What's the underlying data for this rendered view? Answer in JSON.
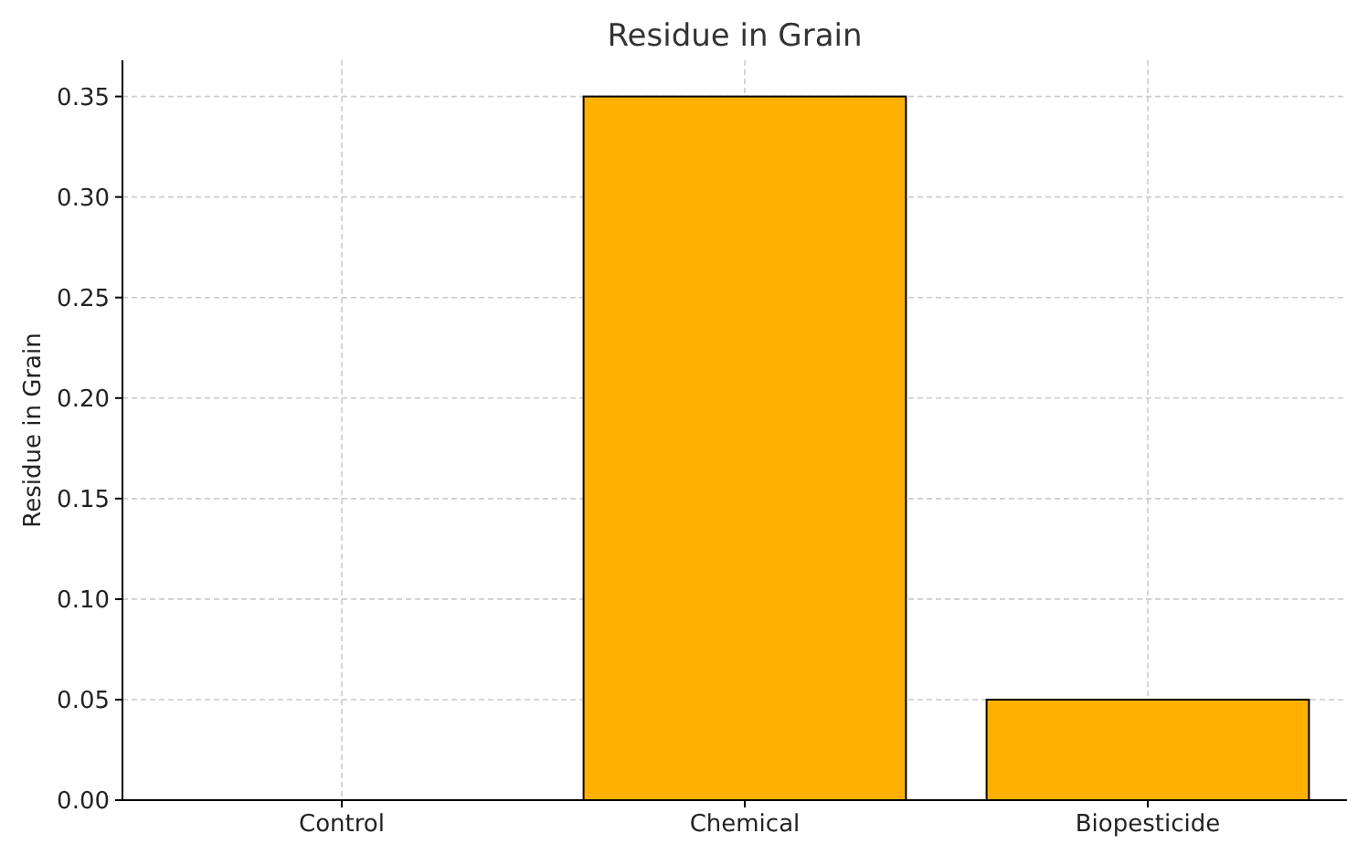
{
  "chart_data": {
    "type": "bar",
    "title": "Residue in Grain",
    "ylabel": "Residue in Grain",
    "categories": [
      "Control",
      "Chemical",
      "Biopesticide"
    ],
    "values": [
      0,
      0.35,
      0.05
    ],
    "color": "#ffb000",
    "ylim": [
      0,
      0.368
    ],
    "yticks": [
      {
        "value": 0,
        "label": "0.00"
      },
      0.05,
      {
        "value": 0.1,
        "label": "0.10"
      },
      0.15,
      {
        "value": 0.2,
        "label": "0.20"
      },
      0.25,
      {
        "value": 0.3,
        "label": "0.30"
      },
      0.35
    ],
    "grid": true
  }
}
